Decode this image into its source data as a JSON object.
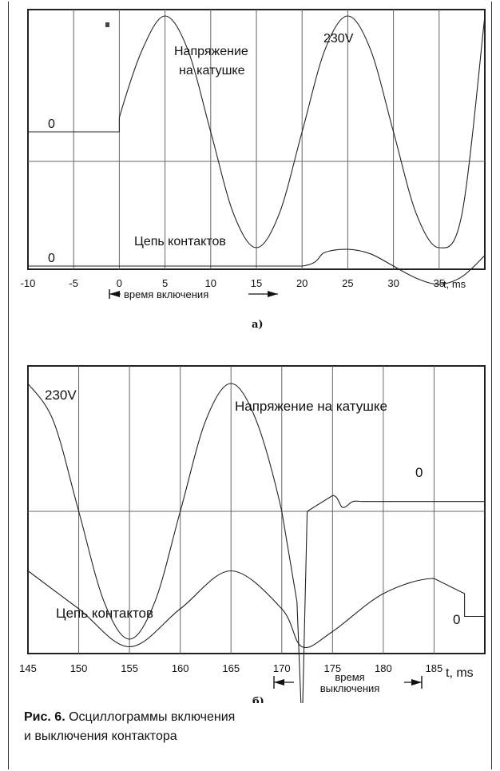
{
  "chart_data": [
    {
      "type": "line",
      "panel_label": "а)",
      "xlabel": "t, ms",
      "x_ticks": [
        "-10",
        "-5",
        "0",
        "5",
        "10",
        "15",
        "20",
        "25",
        "30",
        "35"
      ],
      "xlim": [
        -10,
        40
      ],
      "grid": true,
      "series": [
        {
          "name": "Напряжение на катушке",
          "zero_label": "0",
          "amplitude_label": "230V",
          "unit": "V",
          "x": [
            -10,
            -5,
            0,
            0,
            2.5,
            5,
            7.5,
            10,
            12.5,
            15,
            17.5,
            20,
            22.5,
            25,
            27.5,
            30,
            32.5,
            35,
            37.5,
            40
          ],
          "y": [
            0,
            0,
            0,
            40,
            230,
            325,
            230,
            0,
            -230,
            -325,
            -230,
            0,
            230,
            325,
            230,
            0,
            -230,
            -325,
            -230,
            325
          ]
        },
        {
          "name": "Цепь контактов",
          "zero_label": "0",
          "x": [
            -10,
            0,
            10,
            20,
            22.5,
            25,
            27.5,
            30,
            32.5,
            35,
            37.5,
            40
          ],
          "y": [
            0,
            0,
            0,
            0,
            0.45,
            0.55,
            0.4,
            0,
            -0.4,
            -0.6,
            -0.35,
            0.35
          ]
        }
      ],
      "annotations": [
        {
          "text": "время включения",
          "from": 0,
          "to": 20
        }
      ]
    },
    {
      "type": "line",
      "panel_label": "б)",
      "xlabel": "t, ms",
      "x_ticks": [
        "145",
        "150",
        "155",
        "160",
        "165",
        "170",
        "175",
        "180",
        "185"
      ],
      "xlim": [
        145,
        190
      ],
      "grid": true,
      "series": [
        {
          "name": "Напряжение на катушке",
          "zero_label": "0",
          "amplitude_label": "230V",
          "unit": "V",
          "x": [
            145,
            147.5,
            150,
            152.5,
            155,
            157.5,
            160,
            162.5,
            165,
            167.5,
            170,
            171.5,
            172,
            172.5,
            175,
            176,
            177,
            178,
            180,
            190
          ],
          "y": [
            325,
            230,
            0,
            -230,
            -325,
            -230,
            0,
            230,
            325,
            230,
            0,
            -230,
            -560,
            0,
            40,
            10,
            25,
            25,
            25,
            25
          ]
        },
        {
          "name": "Цепь контактов",
          "zero_label": "0",
          "x": [
            145,
            150,
            155,
            160,
            165,
            170,
            172,
            175,
            180,
            185,
            188,
            188,
            190
          ],
          "y": [
            0.5,
            0,
            -0.5,
            0,
            0.5,
            0,
            -0.5,
            -0.3,
            0.2,
            0.4,
            0.2,
            -0.1,
            -0.1
          ]
        }
      ],
      "annotations": [
        {
          "text_line1": "время",
          "text_line2": "выключения",
          "from": 172,
          "to": 188
        }
      ]
    }
  ],
  "caption": {
    "prefix": "Рис. 6.",
    "line1": " Осциллограммы включения",
    "line2": "и выключения контактора"
  }
}
